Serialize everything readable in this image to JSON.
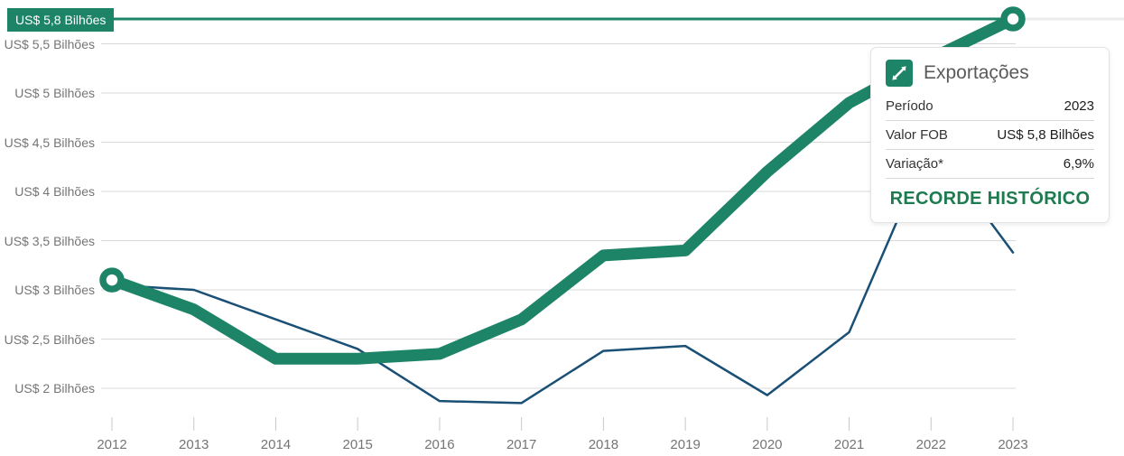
{
  "colors": {
    "export_green": "#1e8467",
    "secondary_navy": "#1a4f76",
    "record_text_green": "#1e7b4f",
    "gridline": "#d8d8d8",
    "tick": "#c9c9c9",
    "axis_text": "#757575",
    "record_line_continuation": "#ececec"
  },
  "tooltip": {
    "title": "Exportações",
    "rows": [
      {
        "label": "Período",
        "value": "2023"
      },
      {
        "label": "Valor FOB",
        "value": "US$ 5,8 Bilhões"
      },
      {
        "label": "Variação*",
        "value": "6,9%"
      }
    ],
    "record_note": "RECORDE HISTÓRICO"
  },
  "chart_data": {
    "type": "line",
    "x": [
      2012,
      2013,
      2014,
      2015,
      2016,
      2017,
      2018,
      2019,
      2020,
      2021,
      2022,
      2023
    ],
    "series": [
      {
        "name": "Exportações",
        "color_key": "export_green",
        "width": 13,
        "endpoint_markers": true,
        "values": [
          3.1,
          2.8,
          2.3,
          2.3,
          2.35,
          2.7,
          3.35,
          3.4,
          4.2,
          4.9,
          5.35,
          5.8
        ]
      },
      {
        "name": "",
        "color_key": "secondary_navy",
        "width": 2.5,
        "endpoint_markers": false,
        "values": [
          3.05,
          3.0,
          2.7,
          2.4,
          1.87,
          1.85,
          2.38,
          2.43,
          1.93,
          2.57,
          4.5,
          3.38
        ]
      }
    ],
    "y_axis": {
      "unit": "US$ Bilhões",
      "labels": [
        {
          "text": "US$ 5,8 Bilhões",
          "value": 5.8,
          "highlighted": true
        },
        {
          "text": "US$ 5,5 Bilhões",
          "value": 5.5
        },
        {
          "text": "US$ 5 Bilhões",
          "value": 5.0
        },
        {
          "text": "US$ 4,5 Bilhões",
          "value": 4.5
        },
        {
          "text": "US$ 4 Bilhões",
          "value": 4.0
        },
        {
          "text": "US$ 3,5 Bilhões",
          "value": 3.5
        },
        {
          "text": "US$ 3 Bilhões",
          "value": 3.0
        },
        {
          "text": "US$ 2,5 Bilhões",
          "value": 2.5
        },
        {
          "text": "US$ 2 Bilhões",
          "value": 2.0
        }
      ]
    },
    "record_value_label": "US$ 5,8 Bilhões",
    "grid": true,
    "legend": false
  }
}
